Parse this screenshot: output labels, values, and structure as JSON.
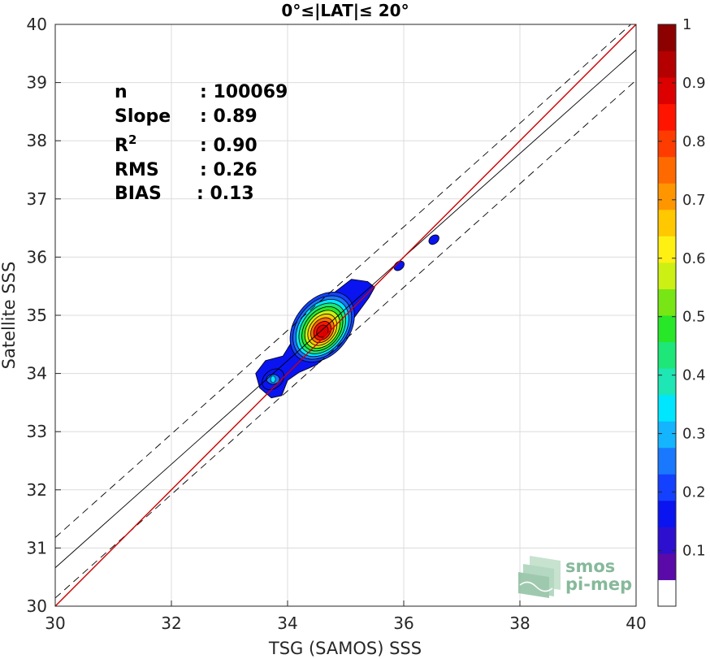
{
  "chart_data": {
    "type": "heatmap",
    "subtype": "density scatter (filled contours) with regression lines",
    "title": "0°≤|LAT|≤ 20°",
    "xlabel": "TSG (SAMOS) SSS",
    "ylabel": "Satellite SSS",
    "xlim": [
      30,
      40
    ],
    "ylim": [
      30,
      40
    ],
    "xticks": [
      30,
      32,
      34,
      36,
      38,
      40
    ],
    "yticks": [
      30,
      31,
      32,
      33,
      34,
      35,
      36,
      37,
      38,
      39,
      40
    ],
    "grid": true,
    "stats": [
      {
        "label": "n",
        "value": ": 100069"
      },
      {
        "label": "Slope",
        "value": ": 0.89"
      },
      {
        "label": "R",
        "sup": "2",
        "value": ": 0.90"
      },
      {
        "label": "RMS",
        "value": ": 0.26"
      },
      {
        "label": "BIAS",
        "value": ": 0.13"
      }
    ],
    "lines": {
      "identity": {
        "color": "#cc0000",
        "points": [
          [
            30,
            30
          ],
          [
            40,
            40
          ]
        ]
      },
      "fit": {
        "color": "#000000",
        "style": "solid",
        "points": [
          [
            30,
            30.66
          ],
          [
            40,
            39.56
          ]
        ]
      },
      "envelope_upper": {
        "color": "#000000",
        "style": "dashed",
        "points": [
          [
            30,
            31.18
          ],
          [
            40,
            40.08
          ]
        ]
      },
      "envelope_lower": {
        "color": "#000000",
        "style": "dashed",
        "points": [
          [
            30,
            30.14
          ],
          [
            40,
            39.04
          ]
        ]
      }
    },
    "density_clusters": [
      {
        "cx": 34.6,
        "cy": 34.72,
        "peak": 0.95
      },
      {
        "cx": 33.75,
        "cy": 33.9,
        "peak": 0.3
      },
      {
        "cx": 35.92,
        "cy": 35.85,
        "peak": 0.12
      },
      {
        "cx": 36.52,
        "cy": 36.3,
        "peak": 0.12
      }
    ],
    "colorbar": {
      "ticks": [
        0.1,
        0.2,
        0.3,
        0.4,
        0.5,
        0.6,
        0.7,
        0.8,
        0.9,
        1
      ],
      "colors": [
        "#ffffff",
        "#5a0aa8",
        "#2d0fcf",
        "#0a14f0",
        "#1440ff",
        "#1a78ff",
        "#14b4ff",
        "#00e6ff",
        "#1ee6b4",
        "#1ee678",
        "#28e628",
        "#78e614",
        "#ccf014",
        "#fff014",
        "#ffc800",
        "#ff9600",
        "#ff6a00",
        "#ff3c00",
        "#ff1400",
        "#dc0000",
        "#b40000",
        "#8c0000"
      ]
    }
  },
  "watermark": {
    "line1": "smos",
    "line2": "pi-mep",
    "color": "#86b99a"
  }
}
